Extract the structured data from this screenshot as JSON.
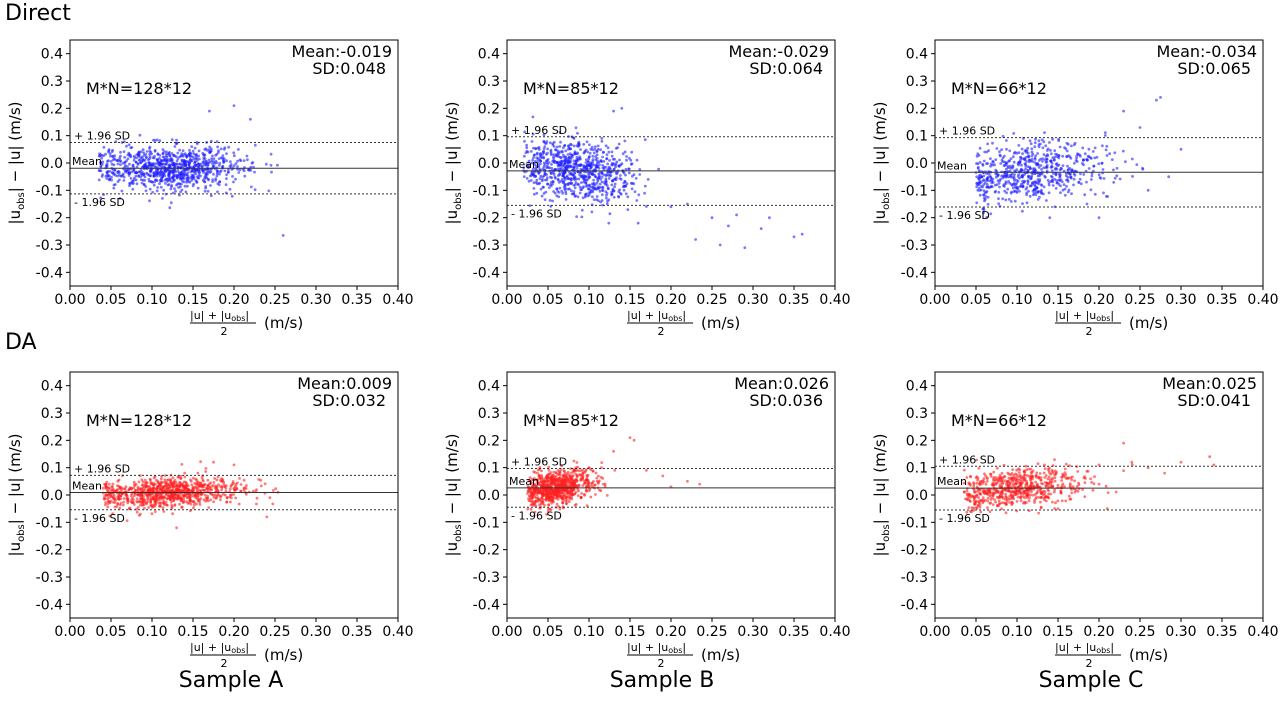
{
  "row_labels": [
    "Direct",
    "DA"
  ],
  "sample_labels": [
    "Sample A",
    "Sample B",
    "Sample C"
  ],
  "axis_text": {
    "x_ticks": [
      "0.00",
      "0.05",
      "0.10",
      "0.15",
      "0.20",
      "0.25",
      "0.30",
      "0.35",
      "0.40"
    ],
    "y_ticks": [
      "0.4",
      "0.3",
      "0.2",
      "0.1",
      "0.0",
      "-0.1",
      "-0.2",
      "-0.3",
      "-0.4"
    ],
    "line_labels": {
      "upper": "+ 1.96 SD",
      "mean": "Mean",
      "lower": "- 1.96 SD"
    }
  },
  "colors": {
    "Direct": "#1f1fff",
    "DA": "#ff2020",
    "axis": "#000000",
    "line": "#333333"
  },
  "chart_data": [
    {
      "type": "scatter",
      "row": "Direct",
      "sample": "Sample A",
      "ylabel": "|u_obs| − |u| (m/s)",
      "xlabel": "(|u| + |u_obs|)/2 (m/s)",
      "xlim": [
        0,
        0.4
      ],
      "ylim": [
        -0.45,
        0.45
      ],
      "mn": "M*N=128*12",
      "mean_text": "Mean:-0.019",
      "sd_text": "SD:0.048",
      "mean": -0.019,
      "sd": 0.048,
      "upper": 0.075,
      "lower": -0.113,
      "cloud": {
        "n": 900,
        "x_mean": 0.12,
        "x_sd": 0.045,
        "x_range": [
          0.035,
          0.27
        ],
        "slope": 0,
        "noise_sd": 0.04
      },
      "outliers": [
        [
          0.26,
          -0.265
        ],
        [
          0.2,
          0.21
        ],
        [
          0.17,
          0.19
        ],
        [
          0.22,
          0.16
        ]
      ]
    },
    {
      "type": "scatter",
      "row": "Direct",
      "sample": "Sample B",
      "ylabel": "|u_obs| − |u| (m/s)",
      "xlabel": "(|u| + |u_obs|)/2 (m/s)",
      "xlim": [
        0,
        0.4
      ],
      "ylim": [
        -0.45,
        0.45
      ],
      "mn": "M*N=85*12",
      "mean_text": "Mean:-0.029",
      "sd_text": "SD:0.064",
      "mean": -0.029,
      "sd": 0.064,
      "upper": 0.096,
      "lower": -0.155,
      "cloud": {
        "n": 800,
        "x_mean": 0.085,
        "x_sd": 0.035,
        "x_range": [
          0.02,
          0.2
        ],
        "slope": -0.3,
        "noise_sd": 0.055
      },
      "outliers": [
        [
          0.26,
          -0.3
        ],
        [
          0.29,
          -0.31
        ],
        [
          0.36,
          -0.26
        ],
        [
          0.35,
          -0.27
        ],
        [
          0.32,
          -0.2
        ],
        [
          0.31,
          -0.24
        ],
        [
          0.25,
          -0.2
        ],
        [
          0.23,
          -0.28
        ],
        [
          0.2,
          -0.16
        ],
        [
          0.22,
          -0.15
        ],
        [
          0.28,
          -0.19
        ],
        [
          0.27,
          -0.23
        ],
        [
          0.14,
          0.2
        ],
        [
          0.13,
          0.19
        ],
        [
          0.16,
          -0.22
        ]
      ]
    },
    {
      "type": "scatter",
      "row": "Direct",
      "sample": "Sample C",
      "ylabel": "|u_obs| − |u| (m/s)",
      "xlabel": "(|u| + |u_obs|)/2 (m/s)",
      "xlim": [
        0,
        0.4
      ],
      "ylim": [
        -0.45,
        0.45
      ],
      "mn": "M*N=66*12",
      "mean_text": "Mean:-0.034",
      "sd_text": "SD:0.065",
      "mean": -0.034,
      "sd": 0.065,
      "upper": 0.093,
      "lower": -0.161,
      "cloud": {
        "n": 650,
        "x_mean": 0.12,
        "x_sd": 0.045,
        "x_range": [
          0.05,
          0.28
        ],
        "slope": 0.25,
        "noise_sd": 0.055
      },
      "outliers": [
        [
          0.275,
          0.24
        ],
        [
          0.27,
          0.23
        ],
        [
          0.23,
          0.19
        ],
        [
          0.3,
          0.05
        ],
        [
          0.285,
          -0.05
        ],
        [
          0.26,
          -0.1
        ],
        [
          0.2,
          -0.2
        ],
        [
          0.14,
          -0.2
        ],
        [
          0.25,
          0.13
        ]
      ]
    },
    {
      "type": "scatter",
      "row": "DA",
      "sample": "Sample A",
      "ylabel": "|u_obs| − |u| (m/s)",
      "xlabel": "(|u| + |u_obs|)/2 (m/s)",
      "xlim": [
        0,
        0.4
      ],
      "ylim": [
        -0.45,
        0.45
      ],
      "mn": "M*N=128*12",
      "mean_text": "Mean:0.009",
      "sd_text": "SD:0.032",
      "mean": 0.009,
      "sd": 0.032,
      "upper": 0.072,
      "lower": -0.054,
      "cloud": {
        "n": 900,
        "x_mean": 0.12,
        "x_sd": 0.045,
        "x_range": [
          0.04,
          0.27
        ],
        "slope": 0.15,
        "noise_sd": 0.028
      },
      "outliers": [
        [
          0.175,
          0.12
        ],
        [
          0.13,
          -0.12
        ],
        [
          0.2,
          0.11
        ],
        [
          0.24,
          -0.08
        ]
      ]
    },
    {
      "type": "scatter",
      "row": "DA",
      "sample": "Sample B",
      "ylabel": "|u_obs| − |u| (m/s)",
      "xlabel": "(|u| + |u_obs|)/2 (m/s)",
      "xlim": [
        0,
        0.4
      ],
      "ylim": [
        -0.45,
        0.45
      ],
      "mn": "M*N=85*12",
      "mean_text": "Mean:0.026",
      "sd_text": "SD:0.036",
      "mean": 0.026,
      "sd": 0.036,
      "upper": 0.097,
      "lower": -0.045,
      "cloud": {
        "n": 800,
        "x_mean": 0.06,
        "x_sd": 0.022,
        "x_range": [
          0.025,
          0.16
        ],
        "slope": 0.6,
        "noise_sd": 0.03
      },
      "outliers": [
        [
          0.155,
          0.2
        ],
        [
          0.15,
          0.21
        ],
        [
          0.13,
          0.16
        ],
        [
          0.22,
          0.05
        ],
        [
          0.235,
          0.04
        ],
        [
          0.19,
          0.07
        ],
        [
          0.17,
          0.09
        ],
        [
          0.2,
          0.03
        ]
      ]
    },
    {
      "type": "scatter",
      "row": "DA",
      "sample": "Sample C",
      "ylabel": "|u_obs| − |u| (m/s)",
      "xlabel": "(|u| + |u_obs|)/2 (m/s)",
      "xlim": [
        0,
        0.4
      ],
      "ylim": [
        -0.45,
        0.45
      ],
      "mn": "M*N=66*12",
      "mean_text": "Mean:0.025",
      "sd_text": "SD:0.041",
      "mean": 0.025,
      "sd": 0.041,
      "upper": 0.105,
      "lower": -0.055,
      "cloud": {
        "n": 650,
        "x_mean": 0.1,
        "x_sd": 0.04,
        "x_range": [
          0.035,
          0.25
        ],
        "slope": 0.3,
        "noise_sd": 0.035
      },
      "outliers": [
        [
          0.34,
          0.11
        ],
        [
          0.335,
          0.14
        ],
        [
          0.3,
          0.12
        ],
        [
          0.28,
          0.08
        ],
        [
          0.23,
          0.19
        ],
        [
          0.24,
          0.12
        ],
        [
          0.2,
          0.11
        ],
        [
          0.26,
          0.1
        ],
        [
          0.21,
          -0.05
        ],
        [
          0.2,
          0.04
        ],
        [
          0.18,
          0.02
        ],
        [
          0.15,
          -0.05
        ]
      ]
    }
  ]
}
